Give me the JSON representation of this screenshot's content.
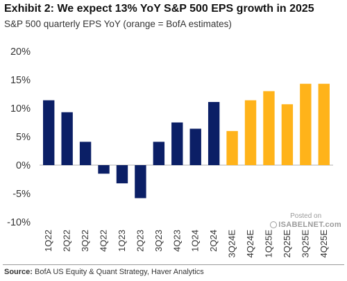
{
  "header": {
    "title": "Exhibit 2: We expect 13% YoY S&P 500 EPS growth in 2025",
    "subtitle": "S&P 500 quarterly EPS YoY (orange = BofA estimates)"
  },
  "source": {
    "label": "Source:",
    "text": "BofA US Equity & Quant Strategy, Haver Analytics"
  },
  "watermark": {
    "line1": "Posted on",
    "line2": "ISABELNET.com"
  },
  "colors": {
    "actual": "#0b1f66",
    "estimate": "#ffb31a",
    "axis": "#b0b0b0"
  },
  "chart_data": {
    "type": "bar",
    "title": "Exhibit 2: We expect 13% YoY S&P 500 EPS growth in 2025",
    "subtitle": "S&P 500 quarterly EPS YoY (orange = BofA estimates)",
    "categories": [
      "1Q22",
      "2Q22",
      "3Q22",
      "4Q22",
      "1Q23",
      "2Q23",
      "3Q23",
      "4Q23",
      "1Q24",
      "2Q24",
      "3Q24E",
      "4Q24E",
      "1Q25E",
      "2Q25E",
      "3Q25E",
      "4Q25E"
    ],
    "values": [
      11.4,
      9.3,
      4.1,
      -1.5,
      -3.2,
      -5.8,
      4.1,
      7.5,
      6.4,
      11.1,
      6.0,
      11.4,
      13.0,
      10.7,
      14.3,
      14.3
    ],
    "estimate": [
      false,
      false,
      false,
      false,
      false,
      false,
      false,
      false,
      false,
      false,
      true,
      true,
      true,
      true,
      true,
      true
    ],
    "ylim": [
      -10,
      20
    ],
    "yticks": [
      20,
      15,
      10,
      5,
      0,
      -5,
      -10
    ],
    "ytick_labels": [
      "20%",
      "15%",
      "10%",
      "5%",
      "0%",
      "-5%",
      "-10%"
    ],
    "xlabel": "",
    "ylabel": "",
    "grid": false,
    "legend": "none"
  }
}
